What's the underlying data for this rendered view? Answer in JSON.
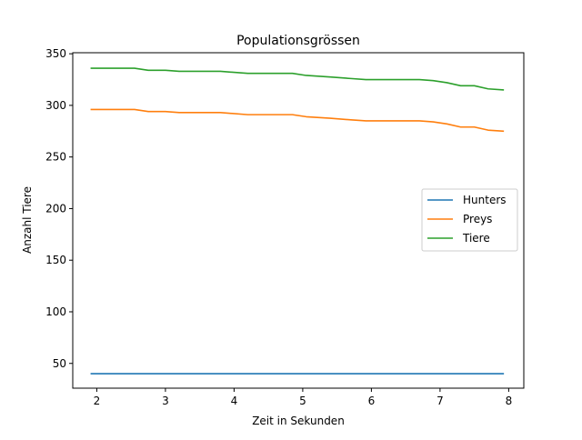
{
  "chart_data": {
    "type": "line",
    "title": "Populationsgrössen",
    "xlabel": "Zeit in Sekunden",
    "ylabel": "Anzahl Tiere",
    "xlim": [
      1.65,
      8.22
    ],
    "ylim": [
      26,
      351
    ],
    "xticks": [
      2,
      3,
      4,
      5,
      6,
      7,
      8
    ],
    "yticks": [
      50,
      100,
      150,
      200,
      250,
      300,
      350
    ],
    "grid": false,
    "legend_position": "center-right",
    "series": [
      {
        "name": "Hunters",
        "color": "#1f77b4",
        "x": [
          1.92,
          2.55,
          3.2,
          3.8,
          4.2,
          4.85,
          5.5,
          6.0,
          6.7,
          7.3,
          7.92
        ],
        "y": [
          40,
          40,
          40,
          40,
          40,
          40,
          40,
          40,
          40,
          40,
          40
        ]
      },
      {
        "name": "Preys",
        "color": "#ff7f0e",
        "x": [
          1.92,
          2.55,
          2.75,
          3.0,
          3.2,
          3.8,
          4.2,
          4.85,
          5.05,
          5.4,
          5.7,
          5.92,
          6.2,
          6.7,
          6.9,
          7.1,
          7.3,
          7.5,
          7.7,
          7.92
        ],
        "y": [
          296,
          296,
          294,
          294,
          293,
          293,
          291,
          291,
          289,
          287.5,
          286,
          285,
          285,
          285,
          284,
          282,
          279,
          279,
          276,
          275
        ]
      },
      {
        "name": "Tiere",
        "color": "#2ca02c",
        "x": [
          1.92,
          2.55,
          2.75,
          3.0,
          3.2,
          3.8,
          4.2,
          4.85,
          5.05,
          5.4,
          5.7,
          5.92,
          6.2,
          6.7,
          6.9,
          7.1,
          7.3,
          7.5,
          7.7,
          7.92
        ],
        "y": [
          336,
          336,
          334,
          334,
          333,
          333,
          331,
          331,
          329,
          327.5,
          326,
          325,
          325,
          325,
          324,
          322,
          319,
          319,
          316,
          315
        ]
      }
    ]
  }
}
